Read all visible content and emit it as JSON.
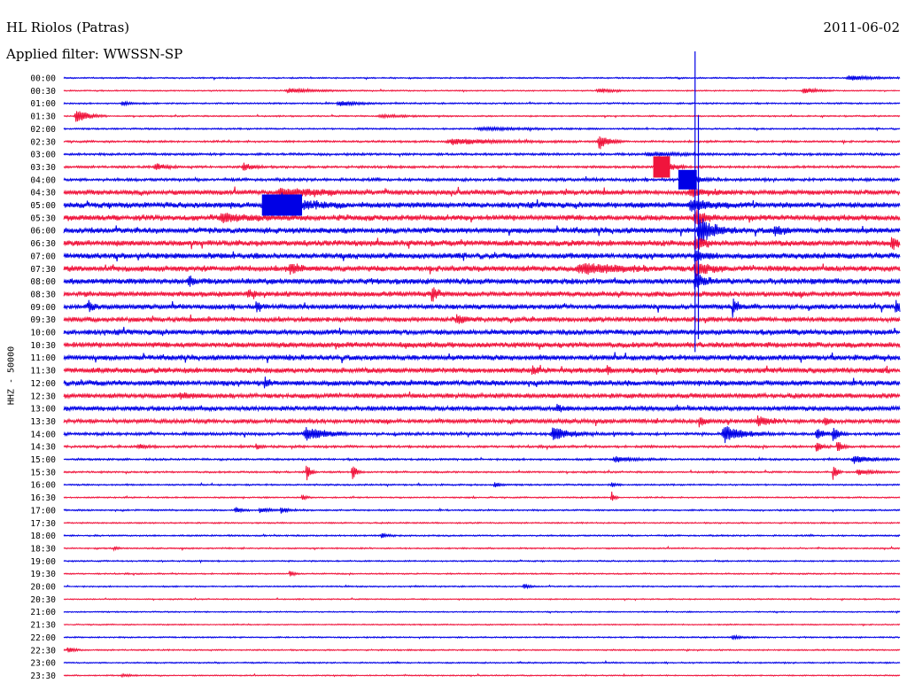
{
  "header": {
    "station": "HL Riolos (Patras)",
    "date": "2011-06-02",
    "filter": "Applied filter: WWSSN-SP",
    "ylabel": "HHZ - 50000"
  },
  "colors": {
    "even_row": "#0000e6",
    "odd_row": "#f0143c",
    "background": "#ffffff"
  },
  "chart_data": {
    "type": "line",
    "title": "HL Riolos (Patras)",
    "ylabel": "HHZ - 50000",
    "rows": [
      {
        "label": "00:00",
        "noise": 0.7,
        "events": [
          {
            "x": 0.94,
            "amp": 2.5,
            "width": 0.025
          }
        ]
      },
      {
        "label": "00:30",
        "noise": 0.6,
        "events": [
          {
            "x": 0.27,
            "amp": 2.5,
            "width": 0.03
          },
          {
            "x": 0.64,
            "amp": 2,
            "width": 0.02
          },
          {
            "x": 0.885,
            "amp": 4,
            "width": 0.012
          }
        ]
      },
      {
        "label": "01:00",
        "noise": 0.8,
        "events": [
          {
            "x": 0.07,
            "amp": 2,
            "width": 0.01
          },
          {
            "x": 0.33,
            "amp": 2.5,
            "width": 0.02
          }
        ]
      },
      {
        "label": "01:30",
        "noise": 0.7,
        "events": [
          {
            "x": 0.015,
            "amp": 9,
            "width": 0.012
          },
          {
            "x": 0.38,
            "amp": 1.5,
            "width": 0.03
          }
        ]
      },
      {
        "label": "02:00",
        "noise": 0.8,
        "events": [
          {
            "x": 0.5,
            "amp": 1.5,
            "width": 0.05
          }
        ]
      },
      {
        "label": "02:30",
        "noise": 1.0,
        "events": [
          {
            "x": 0.465,
            "amp": 3,
            "width": 0.05
          },
          {
            "x": 0.64,
            "amp": 9,
            "width": 0.01
          }
        ]
      },
      {
        "label": "03:00",
        "noise": 1.2,
        "events": [
          {
            "x": 0.7,
            "amp": 2,
            "width": 0.03
          }
        ]
      },
      {
        "label": "03:30",
        "noise": 1.2,
        "events": [
          {
            "x": 0.11,
            "amp": 4,
            "width": 0.01
          },
          {
            "x": 0.215,
            "amp": 4,
            "width": 0.01
          },
          {
            "x": 0.71,
            "amp": 11,
            "width": 0.012
          }
        ]
      },
      {
        "label": "04:00",
        "noise": 1.5,
        "events": [
          {
            "x": 0.74,
            "amp": 10,
            "width": 0.012
          }
        ]
      },
      {
        "label": "04:30",
        "noise": 2.5,
        "events": [
          {
            "x": 0.26,
            "amp": 4,
            "width": 0.04
          },
          {
            "x": 0.75,
            "amp": 4,
            "width": 0.02
          }
        ]
      },
      {
        "label": "05:00",
        "noise": 3.0,
        "events": [
          {
            "x": 0.26,
            "amp": 10,
            "width": 0.025
          },
          {
            "x": 0.75,
            "amp": 6,
            "width": 0.02
          }
        ]
      },
      {
        "label": "05:30",
        "noise": 3.0,
        "events": [
          {
            "x": 0.19,
            "amp": 4,
            "width": 0.03
          },
          {
            "x": 0.755,
            "amp": 8,
            "width": 0.01
          }
        ]
      },
      {
        "label": "06:00",
        "noise": 3.0,
        "events": [
          {
            "x": 0.76,
            "amp": 14,
            "width": 0.015
          },
          {
            "x": 0.85,
            "amp": 6,
            "width": 0.008
          }
        ]
      },
      {
        "label": "06:30",
        "noise": 3.0,
        "events": [
          {
            "x": 0.755,
            "amp": 8,
            "width": 0.01
          },
          {
            "x": 0.99,
            "amp": 8,
            "width": 0.006
          }
        ]
      },
      {
        "label": "07:00",
        "noise": 3.0,
        "events": [
          {
            "x": 0.755,
            "amp": 6,
            "width": 0.01
          }
        ]
      },
      {
        "label": "07:30",
        "noise": 3.0,
        "events": [
          {
            "x": 0.27,
            "amp": 5,
            "width": 0.01
          },
          {
            "x": 0.62,
            "amp": 5,
            "width": 0.04
          },
          {
            "x": 0.755,
            "amp": 10,
            "width": 0.012
          }
        ]
      },
      {
        "label": "08:00",
        "noise": 3.0,
        "events": [
          {
            "x": 0.15,
            "amp": 5,
            "width": 0.006
          },
          {
            "x": 0.755,
            "amp": 8,
            "width": 0.01
          }
        ]
      },
      {
        "label": "08:30",
        "noise": 2.8,
        "events": [
          {
            "x": 0.22,
            "amp": 4,
            "width": 0.006
          },
          {
            "x": 0.44,
            "amp": 10,
            "width": 0.005
          }
        ]
      },
      {
        "label": "09:00",
        "noise": 2.5,
        "events": [
          {
            "x": 0.03,
            "amp": 7,
            "width": 0.004
          },
          {
            "x": 0.23,
            "amp": 6,
            "width": 0.005
          },
          {
            "x": 0.8,
            "amp": 10,
            "width": 0.004
          },
          {
            "x": 0.995,
            "amp": 9,
            "width": 0.004
          }
        ]
      },
      {
        "label": "09:30",
        "noise": 2.5,
        "events": [
          {
            "x": 0.47,
            "amp": 4,
            "width": 0.01
          }
        ]
      },
      {
        "label": "10:00",
        "noise": 2.8,
        "events": []
      },
      {
        "label": "10:30",
        "noise": 2.8,
        "events": []
      },
      {
        "label": "11:00",
        "noise": 2.8,
        "events": []
      },
      {
        "label": "11:30",
        "noise": 2.8,
        "events": [
          {
            "x": 0.56,
            "amp": 5,
            "width": 0.004
          },
          {
            "x": 0.65,
            "amp": 5,
            "width": 0.004
          }
        ]
      },
      {
        "label": "12:00",
        "noise": 2.8,
        "events": [
          {
            "x": 0.24,
            "amp": 6,
            "width": 0.005
          }
        ]
      },
      {
        "label": "12:30",
        "noise": 2.5,
        "events": [
          {
            "x": 0.14,
            "amp": 3,
            "width": 0.01
          }
        ]
      },
      {
        "label": "13:00",
        "noise": 2.5,
        "events": [
          {
            "x": 0.59,
            "amp": 4,
            "width": 0.006
          }
        ]
      },
      {
        "label": "13:30",
        "noise": 2.2,
        "events": [
          {
            "x": 0.76,
            "amp": 6,
            "width": 0.005
          },
          {
            "x": 0.83,
            "amp": 6,
            "width": 0.01
          },
          {
            "x": 0.91,
            "amp": 6,
            "width": 0.005
          }
        ]
      },
      {
        "label": "14:00",
        "noise": 1.5,
        "events": [
          {
            "x": 0.29,
            "amp": 7,
            "width": 0.02
          },
          {
            "x": 0.585,
            "amp": 7,
            "width": 0.018
          },
          {
            "x": 0.79,
            "amp": 9,
            "width": 0.02
          },
          {
            "x": 0.9,
            "amp": 6,
            "width": 0.008
          },
          {
            "x": 0.92,
            "amp": 8,
            "width": 0.006
          }
        ]
      },
      {
        "label": "14:30",
        "noise": 1.2,
        "events": [
          {
            "x": 0.09,
            "amp": 2,
            "width": 0.01
          },
          {
            "x": 0.23,
            "amp": 3,
            "width": 0.005
          },
          {
            "x": 0.9,
            "amp": 6,
            "width": 0.006
          },
          {
            "x": 0.925,
            "amp": 8,
            "width": 0.005
          }
        ]
      },
      {
        "label": "15:00",
        "noise": 1.0,
        "events": [
          {
            "x": 0.66,
            "amp": 3,
            "width": 0.02
          },
          {
            "x": 0.945,
            "amp": 4,
            "width": 0.02
          }
        ]
      },
      {
        "label": "15:30",
        "noise": 0.9,
        "events": [
          {
            "x": 0.29,
            "amp": 12,
            "width": 0.004
          },
          {
            "x": 0.345,
            "amp": 10,
            "width": 0.004
          },
          {
            "x": 0.92,
            "amp": 10,
            "width": 0.004
          },
          {
            "x": 0.95,
            "amp": 3,
            "width": 0.015
          }
        ]
      },
      {
        "label": "16:00",
        "noise": 0.8,
        "events": [
          {
            "x": 0.515,
            "amp": 3,
            "width": 0.006
          },
          {
            "x": 0.655,
            "amp": 3,
            "width": 0.004
          }
        ]
      },
      {
        "label": "16:30",
        "noise": 0.7,
        "events": [
          {
            "x": 0.285,
            "amp": 4,
            "width": 0.004
          },
          {
            "x": 0.655,
            "amp": 8,
            "width": 0.003
          }
        ]
      },
      {
        "label": "17:00",
        "noise": 0.8,
        "events": [
          {
            "x": 0.205,
            "amp": 4,
            "width": 0.006
          },
          {
            "x": 0.235,
            "amp": 3,
            "width": 0.01
          },
          {
            "x": 0.26,
            "amp": 3,
            "width": 0.008
          }
        ]
      },
      {
        "label": "17:30",
        "noise": 0.7,
        "events": []
      },
      {
        "label": "18:00",
        "noise": 0.8,
        "events": [
          {
            "x": 0.38,
            "amp": 3,
            "width": 0.006
          }
        ]
      },
      {
        "label": "18:30",
        "noise": 0.7,
        "events": [
          {
            "x": 0.06,
            "amp": 2,
            "width": 0.004
          }
        ]
      },
      {
        "label": "19:00",
        "noise": 0.7,
        "events": []
      },
      {
        "label": "19:30",
        "noise": 0.7,
        "events": [
          {
            "x": 0.27,
            "amp": 4,
            "width": 0.004
          }
        ]
      },
      {
        "label": "20:00",
        "noise": 0.7,
        "events": [
          {
            "x": 0.55,
            "amp": 2.5,
            "width": 0.006
          }
        ]
      },
      {
        "label": "20:30",
        "noise": 0.6,
        "events": []
      },
      {
        "label": "21:00",
        "noise": 0.6,
        "events": []
      },
      {
        "label": "21:30",
        "noise": 0.6,
        "events": []
      },
      {
        "label": "22:00",
        "noise": 0.7,
        "events": [
          {
            "x": 0.8,
            "amp": 2,
            "width": 0.01
          }
        ]
      },
      {
        "label": "22:30",
        "noise": 0.7,
        "events": [
          {
            "x": 0.005,
            "amp": 4,
            "width": 0.006
          }
        ]
      },
      {
        "label": "23:00",
        "noise": 0.7,
        "events": []
      },
      {
        "label": "23:30",
        "noise": 0.6,
        "events": [
          {
            "x": 0.07,
            "amp": 1.5,
            "width": 0.01
          }
        ]
      }
    ],
    "spikes": [
      {
        "x": 0.755,
        "from_row": 0,
        "to_row": 21
      },
      {
        "x": 0.759,
        "from_row": 5,
        "to_row": 20
      }
    ],
    "blocks": [
      {
        "row": 7,
        "x": 0.705,
        "w": 0.02,
        "amp": 12
      },
      {
        "row": 8,
        "x": 0.735,
        "w": 0.022,
        "amp": 11
      },
      {
        "row": 10,
        "x": 0.237,
        "w": 0.048,
        "amp": 12
      }
    ]
  }
}
